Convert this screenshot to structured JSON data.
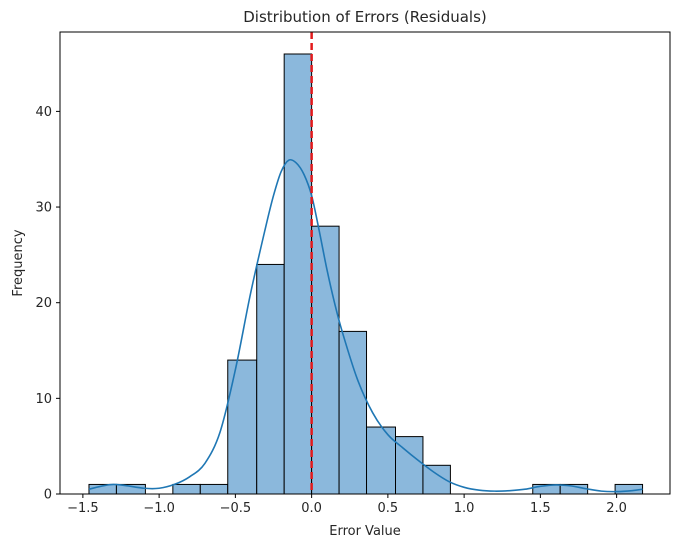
{
  "chart_data": {
    "type": "histogram",
    "title": "Distribution of Errors (Residuals)",
    "xlabel": "Error Value",
    "ylabel": "Frequency",
    "xlim": [
      -1.65,
      2.35
    ],
    "ylim": [
      0,
      48.3
    ],
    "xticks": [
      -1.5,
      -1.0,
      -0.5,
      0.0,
      0.5,
      1.0,
      1.5,
      2.0
    ],
    "xtick_labels": [
      "−1.5",
      "−1.0",
      "−0.5",
      "0.0",
      "0.5",
      "1.0",
      "1.5",
      "2.0"
    ],
    "yticks": [
      0,
      10,
      20,
      30,
      40
    ],
    "ytick_labels": [
      "0",
      "10",
      "20",
      "30",
      "40"
    ],
    "bins": [
      {
        "x0": -1.46,
        "x1": -1.28,
        "count": 1
      },
      {
        "x0": -1.28,
        "x1": -1.09,
        "count": 1
      },
      {
        "x0": -1.09,
        "x1": -0.91,
        "count": 0
      },
      {
        "x0": -0.91,
        "x1": -0.73,
        "count": 1
      },
      {
        "x0": -0.73,
        "x1": -0.55,
        "count": 1
      },
      {
        "x0": -0.55,
        "x1": -0.36,
        "count": 14
      },
      {
        "x0": -0.36,
        "x1": -0.18,
        "count": 24
      },
      {
        "x0": -0.18,
        "x1": 0.0,
        "count": 46
      },
      {
        "x0": 0.0,
        "x1": 0.18,
        "count": 28
      },
      {
        "x0": 0.18,
        "x1": 0.36,
        "count": 17
      },
      {
        "x0": 0.36,
        "x1": 0.55,
        "count": 7
      },
      {
        "x0": 0.55,
        "x1": 0.73,
        "count": 6
      },
      {
        "x0": 0.73,
        "x1": 0.91,
        "count": 3
      },
      {
        "x0": 0.91,
        "x1": 1.09,
        "count": 0
      },
      {
        "x0": 1.09,
        "x1": 1.27,
        "count": 0
      },
      {
        "x0": 1.27,
        "x1": 1.45,
        "count": 0
      },
      {
        "x0": 1.45,
        "x1": 1.63,
        "count": 1
      },
      {
        "x0": 1.63,
        "x1": 1.81,
        "count": 1
      },
      {
        "x0": 1.81,
        "x1": 1.99,
        "count": 0
      },
      {
        "x0": 1.99,
        "x1": 2.17,
        "count": 1
      }
    ],
    "kde": {
      "x": [
        -1.46,
        -1.3,
        -1.1,
        -1.0,
        -0.9,
        -0.8,
        -0.7,
        -0.6,
        -0.5,
        -0.4,
        -0.3,
        -0.25,
        -0.2,
        -0.15,
        -0.1,
        -0.05,
        0.0,
        0.05,
        0.1,
        0.15,
        0.2,
        0.3,
        0.4,
        0.5,
        0.6,
        0.7,
        0.8,
        0.9,
        1.0,
        1.1,
        1.2,
        1.3,
        1.4,
        1.5,
        1.6,
        1.7,
        1.8,
        1.9,
        2.0,
        2.1,
        2.17
      ],
      "y": [
        0.5,
        1.0,
        0.6,
        0.6,
        1.0,
        1.8,
        3.2,
        6.5,
        13.0,
        21.0,
        28.0,
        31.2,
        33.7,
        34.9,
        34.6,
        33.4,
        31.2,
        27.5,
        23.5,
        20.0,
        17.0,
        12.0,
        8.5,
        6.2,
        4.8,
        3.5,
        2.3,
        1.3,
        0.7,
        0.4,
        0.3,
        0.35,
        0.5,
        0.8,
        0.95,
        0.85,
        0.55,
        0.3,
        0.25,
        0.35,
        0.5
      ]
    },
    "reference_line": {
      "x": 0.0,
      "style": "dashed",
      "color": "#e31a1c"
    },
    "colors": {
      "bar_fill": "#8bb8dc",
      "bar_edge": "#000000",
      "kde": "#1f77b4"
    },
    "grid": false
  }
}
